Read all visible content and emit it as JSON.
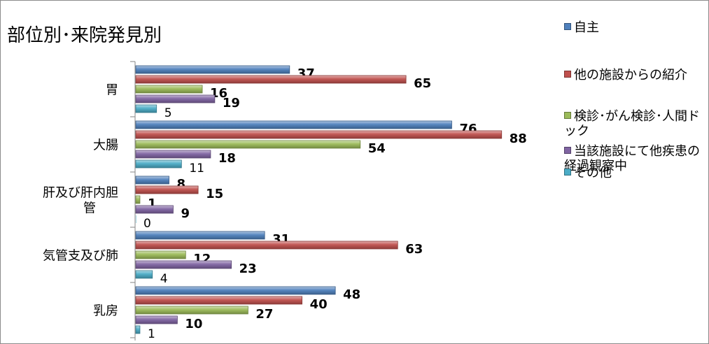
{
  "chart_data": {
    "type": "bar",
    "orientation": "horizontal",
    "title": "部位別･来院発見別",
    "categories": [
      "胃",
      "大腸",
      "肝及び肝内胆管",
      "気管支及び肺",
      "乳房"
    ],
    "category_labels": [
      [
        "胃"
      ],
      [
        "大腸"
      ],
      [
        "肝及び肝内胆",
        "管"
      ],
      [
        "気管支及び肺"
      ],
      [
        "乳房"
      ]
    ],
    "series": [
      {
        "name": "自主",
        "color": "#4f81bd",
        "values": [
          37,
          76,
          8,
          31,
          48
        ]
      },
      {
        "name": "他の施設からの紹介",
        "color": "#c0504d",
        "values": [
          65,
          88,
          15,
          63,
          40
        ]
      },
      {
        "name": "検診･がん検診･人間ドック",
        "color": "#9bbb59",
        "values": [
          16,
          54,
          1,
          12,
          27
        ]
      },
      {
        "name": "当該施設にて他疾患の経過観察中",
        "color": "#8064a2",
        "values": [
          19,
          18,
          9,
          23,
          10
        ]
      },
      {
        "name": "その他",
        "color": "#4bacc6",
        "values": [
          5,
          11,
          0,
          4,
          1
        ]
      }
    ],
    "xlim": [
      0,
      100
    ],
    "grid": false,
    "legend_position": "right",
    "label_bold": [
      true,
      true,
      true,
      true,
      false
    ]
  }
}
